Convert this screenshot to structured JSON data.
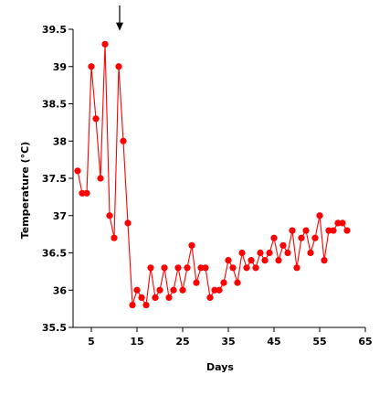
{
  "chart_data": {
    "type": "line",
    "title": "",
    "xlabel": "Days",
    "ylabel": "Temperature (°C)",
    "xlim": [
      1,
      65
    ],
    "ylim": [
      35.5,
      39.5
    ],
    "xticks": [
      5,
      15,
      25,
      35,
      45,
      55,
      65
    ],
    "xtick_labels": [
      "5",
      "15",
      "25",
      "35",
      "45",
      "55",
      "65"
    ],
    "yticks": [
      35.5,
      36,
      36.5,
      37,
      37.5,
      38,
      38.5,
      39,
      39.5
    ],
    "ytick_labels": [
      "35.5",
      "36",
      "36.5",
      "37",
      "37.5",
      "38",
      "38.5",
      "39",
      "39.5"
    ],
    "grid": false,
    "legend": "none",
    "series": [
      {
        "color": "#ff0000",
        "marker": "circle",
        "x": [
          2,
          3,
          4,
          5,
          6,
          7,
          8,
          9,
          10,
          11,
          12,
          13,
          14,
          15,
          16,
          17,
          18,
          19,
          20,
          21,
          22,
          23,
          24,
          25,
          26,
          27,
          28,
          29,
          30,
          31,
          32,
          33,
          34,
          35,
          36,
          37,
          38,
          39,
          40,
          41,
          42,
          43,
          44,
          45,
          46,
          47,
          48,
          49,
          50,
          51,
          52,
          53,
          54,
          55,
          56,
          57,
          58,
          59,
          60,
          61
        ],
        "y": [
          37.6,
          37.3,
          37.3,
          39.0,
          38.3,
          37.5,
          39.3,
          37.0,
          36.7,
          39.0,
          38.0,
          36.9,
          35.8,
          36.0,
          35.9,
          35.8,
          36.3,
          35.9,
          36.0,
          36.3,
          35.9,
          36.0,
          36.3,
          36.0,
          36.3,
          36.6,
          36.1,
          36.3,
          36.3,
          35.9,
          36.0,
          36.0,
          36.1,
          36.4,
          36.3,
          36.1,
          36.5,
          36.3,
          36.4,
          36.3,
          36.5,
          36.4,
          36.5,
          36.7,
          36.4,
          36.6,
          36.5,
          36.8,
          36.3,
          36.7,
          36.8,
          36.5,
          36.7,
          37.0,
          36.4,
          36.8,
          36.8,
          36.9,
          36.9,
          36.8
        ]
      }
    ],
    "annotations": [
      {
        "type": "arrow",
        "direction": "down",
        "x": 11.2,
        "y_top": 39.82,
        "y_bottom": 39.48
      }
    ]
  }
}
